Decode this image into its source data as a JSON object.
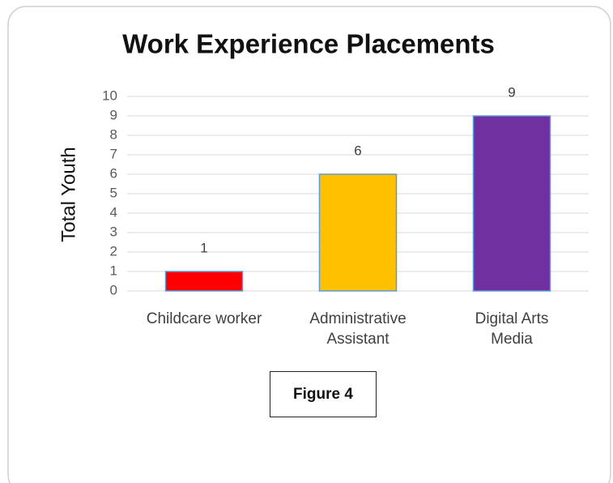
{
  "chart_data": {
    "type": "bar",
    "title": "Work Experience Placements",
    "y_label": "Total Youth",
    "categories": [
      "Childcare worker",
      "Administrative\nAssistant",
      "Digital Arts\nMedia"
    ],
    "values": [
      1,
      6,
      9
    ],
    "colors": [
      "#ff0000",
      "#ffc000",
      "#7030a0"
    ],
    "ylim": [
      0,
      10
    ],
    "yticks": [
      0,
      1,
      2,
      3,
      4,
      5,
      6,
      7,
      8,
      9,
      10
    ],
    "grid": true,
    "annotation": "Figure 4"
  }
}
